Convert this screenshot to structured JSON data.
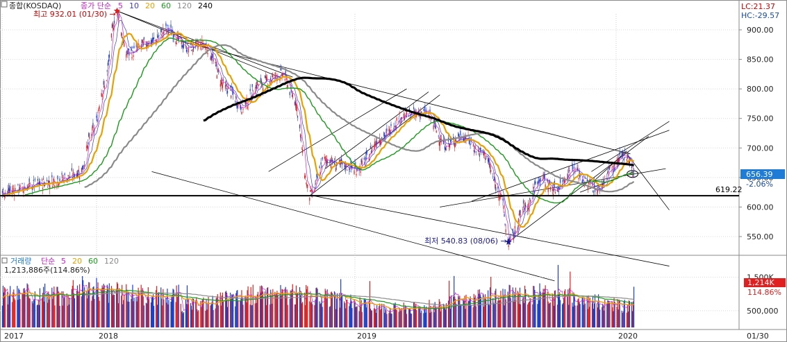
{
  "price_legend": {
    "name": "종합(KOSDAQ)",
    "ma_label": "종가 단순",
    "periods": [
      "5",
      "10",
      "20",
      "60",
      "120",
      "240"
    ],
    "colors": [
      "#cc22cc",
      "#3a3ad0",
      "#e8a000",
      "#1a9a1a",
      "#8a8a8a",
      "#000000"
    ]
  },
  "lc_label": "LC:21.37",
  "hc_label": "HC:-29.57",
  "high_marker": "최고 932.01 (01/30) →",
  "low_marker": "최저 540.83 (08/06) →",
  "support_label": "619.22",
  "current_price_badge": "656.39",
  "current_change": "-2.06%",
  "volume_legend": {
    "name": "거래량",
    "ma_label": "단순",
    "periods": [
      "5",
      "20",
      "60",
      "120"
    ],
    "colors": [
      "#cc22cc",
      "#e8a000",
      "#1a9a1a",
      "#8a8a8a"
    ]
  },
  "volume_value": "1,213,886주(114.86%)",
  "volume_badge": "1,214K",
  "volume_pct": "114.86%",
  "top_right_date": "01/30",
  "chart_data": [
    {
      "type": "candlestick",
      "title": "종합(KOSDAQ)",
      "x_axis_labels": [
        "2017",
        "2018",
        "2019",
        "2020"
      ],
      "y_tick_labels": [
        "550.00",
        "600.00",
        "650.00",
        "700.00",
        "750.00",
        "800.00",
        "850.00",
        "900.00"
      ],
      "ylim": [
        520,
        955
      ],
      "anchors": [
        {
          "date": "2017-11-20",
          "close": 650
        },
        {
          "date": "2017-12-08",
          "close": 660
        },
        {
          "date": "2017-12-28",
          "close": 730
        },
        {
          "date": "2018-01-10",
          "close": 800
        },
        {
          "date": "2018-01-30",
          "close": 930
        },
        {
          "date": "2018-02-12",
          "close": 860
        },
        {
          "date": "2018-03-20",
          "close": 880
        },
        {
          "date": "2018-04-10",
          "close": 900
        },
        {
          "date": "2018-05-10",
          "close": 870
        },
        {
          "date": "2018-06-01",
          "close": 875
        },
        {
          "date": "2018-07-05",
          "close": 800
        },
        {
          "date": "2018-07-25",
          "close": 770
        },
        {
          "date": "2018-08-20",
          "close": 810
        },
        {
          "date": "2018-09-20",
          "close": 825
        },
        {
          "date": "2018-10-05",
          "close": 790
        },
        {
          "date": "2018-10-30",
          "close": 620
        },
        {
          "date": "2018-11-20",
          "close": 680
        },
        {
          "date": "2018-12-15",
          "close": 670
        },
        {
          "date": "2019-01-03",
          "close": 665
        },
        {
          "date": "2019-02-10",
          "close": 720
        },
        {
          "date": "2019-03-10",
          "close": 755
        },
        {
          "date": "2019-04-10",
          "close": 760
        },
        {
          "date": "2019-05-10",
          "close": 705
        },
        {
          "date": "2019-06-01",
          "close": 720
        },
        {
          "date": "2019-07-01",
          "close": 690
        },
        {
          "date": "2019-07-25",
          "close": 625
        },
        {
          "date": "2019-08-06",
          "close": 541
        },
        {
          "date": "2019-08-30",
          "close": 600
        },
        {
          "date": "2019-09-20",
          "close": 650
        },
        {
          "date": "2019-10-10",
          "close": 630
        },
        {
          "date": "2019-11-05",
          "close": 665
        },
        {
          "date": "2019-11-25",
          "close": 640
        },
        {
          "date": "2019-12-10",
          "close": 630
        },
        {
          "date": "2019-12-30",
          "close": 665
        },
        {
          "date": "2020-01-20",
          "close": 690
        },
        {
          "date": "2020-01-30",
          "close": 656
        }
      ],
      "moving_average_periods": [
        5,
        10,
        20,
        60,
        120,
        240
      ],
      "annotations": {
        "high": {
          "date": "2018-01-30",
          "value": 932.01
        },
        "low": {
          "date": "2019-08-06",
          "value": 540.83
        },
        "support": 619.22,
        "last": 656.39
      }
    },
    {
      "type": "bar",
      "title": "거래량",
      "y_tick_labels": [
        "500,000",
        "1,500K"
      ],
      "ylim": [
        0,
        1800000
      ],
      "last_value": 1213886,
      "moving_average_periods": [
        5,
        20,
        60,
        120
      ]
    }
  ]
}
